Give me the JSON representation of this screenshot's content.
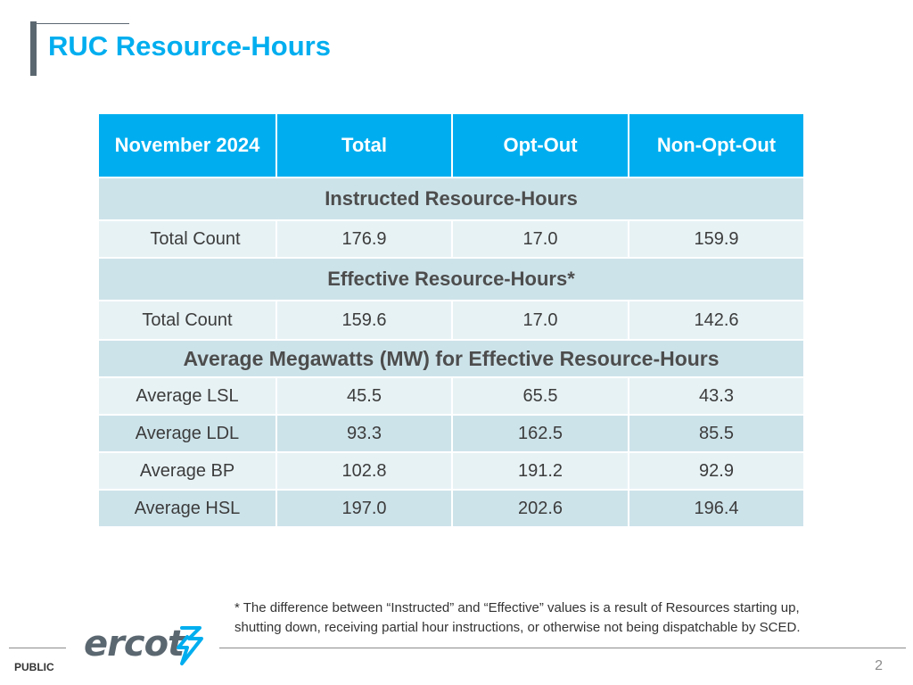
{
  "title": "RUC Resource-Hours",
  "table": {
    "header": [
      "November 2024",
      "Total",
      "Opt-Out",
      "Non-Opt-Out"
    ],
    "sections": [
      {
        "heading": "Instructed Resource-Hours",
        "rows": [
          {
            "label": "Total Count",
            "values": [
              "176.9",
              "17.0",
              "159.9"
            ]
          }
        ]
      },
      {
        "heading": "Effective Resource-Hours*",
        "rows": [
          {
            "label": "Total Count",
            "values": [
              "159.6",
              "17.0",
              "142.6"
            ]
          }
        ]
      },
      {
        "heading": "Average Megawatts (MW) for Effective Resource-Hours",
        "rows": [
          {
            "label": "Average LSL",
            "values": [
              "45.5",
              "65.5",
              "43.3"
            ]
          },
          {
            "label": "Average LDL",
            "values": [
              "93.3",
              "162.5",
              "85.5"
            ]
          },
          {
            "label": "Average BP",
            "values": [
              "102.8",
              "191.2",
              "92.9"
            ]
          },
          {
            "label": "Average HSL",
            "values": [
              "197.0",
              "202.6",
              "196.4"
            ]
          }
        ]
      }
    ]
  },
  "footnote_line1": "* The difference between “Instructed” and “Effective” values is a result of Resources starting up,",
  "footnote_line2": "shutting down, receiving partial hour instructions, or otherwise not being dispatchable by SCED.",
  "footer": {
    "logo_text": "ercot",
    "classification": "PUBLIC",
    "page_number": "2"
  },
  "colors": {
    "accent": "#00aeef",
    "row_light": "#e7f2f5",
    "row_dark": "#cde3ea",
    "logo_gray": "#5b6770"
  }
}
